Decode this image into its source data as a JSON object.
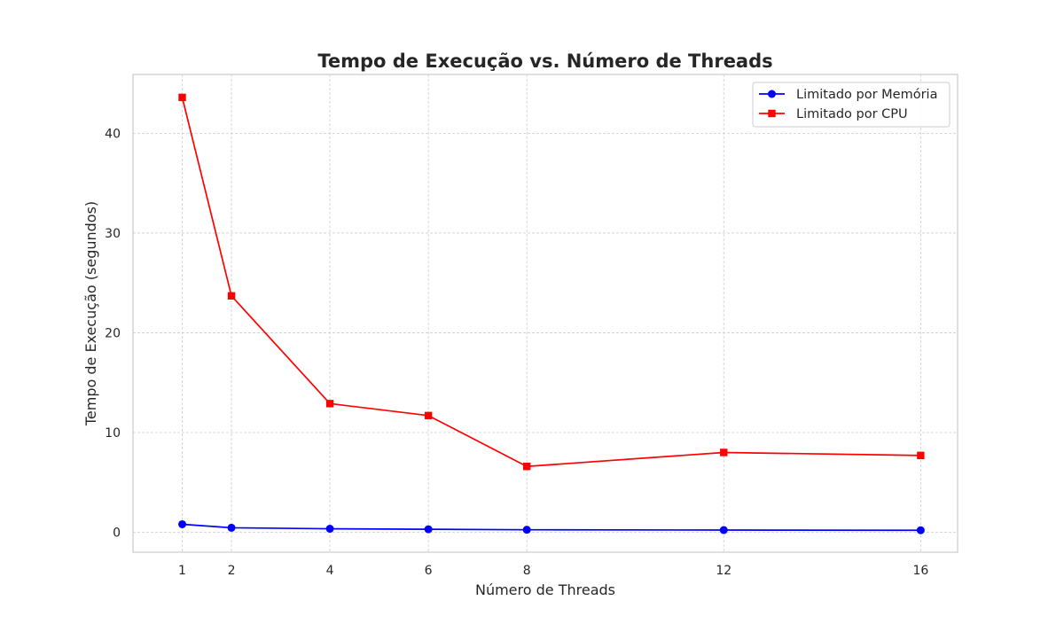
{
  "chart_data": {
    "type": "line",
    "title": "Tempo de Execução vs. Número de Threads",
    "xlabel": "Número de Threads",
    "ylabel": "Tempo de Execução (segundos)",
    "x": [
      1,
      2,
      4,
      6,
      8,
      12,
      16
    ],
    "xticks": [
      "1",
      "2",
      "4",
      "6",
      "8",
      "12",
      "16"
    ],
    "yticks": [
      "0",
      "10",
      "20",
      "30",
      "40"
    ],
    "xlim": [
      0.0,
      16.75
    ],
    "ylim": [
      -2.0,
      45.9
    ],
    "grid": true,
    "legend_position": "top-right",
    "series": [
      {
        "name": "Limitado por Memória",
        "values": [
          0.8,
          0.45,
          0.35,
          0.3,
          0.25,
          0.22,
          0.2
        ],
        "color": "#0000ff",
        "marker": "circle"
      },
      {
        "name": "Limitado por CPU",
        "values": [
          43.6,
          23.7,
          12.9,
          11.7,
          6.6,
          8.0,
          7.7
        ],
        "color": "#ff0000",
        "marker": "square"
      }
    ]
  }
}
